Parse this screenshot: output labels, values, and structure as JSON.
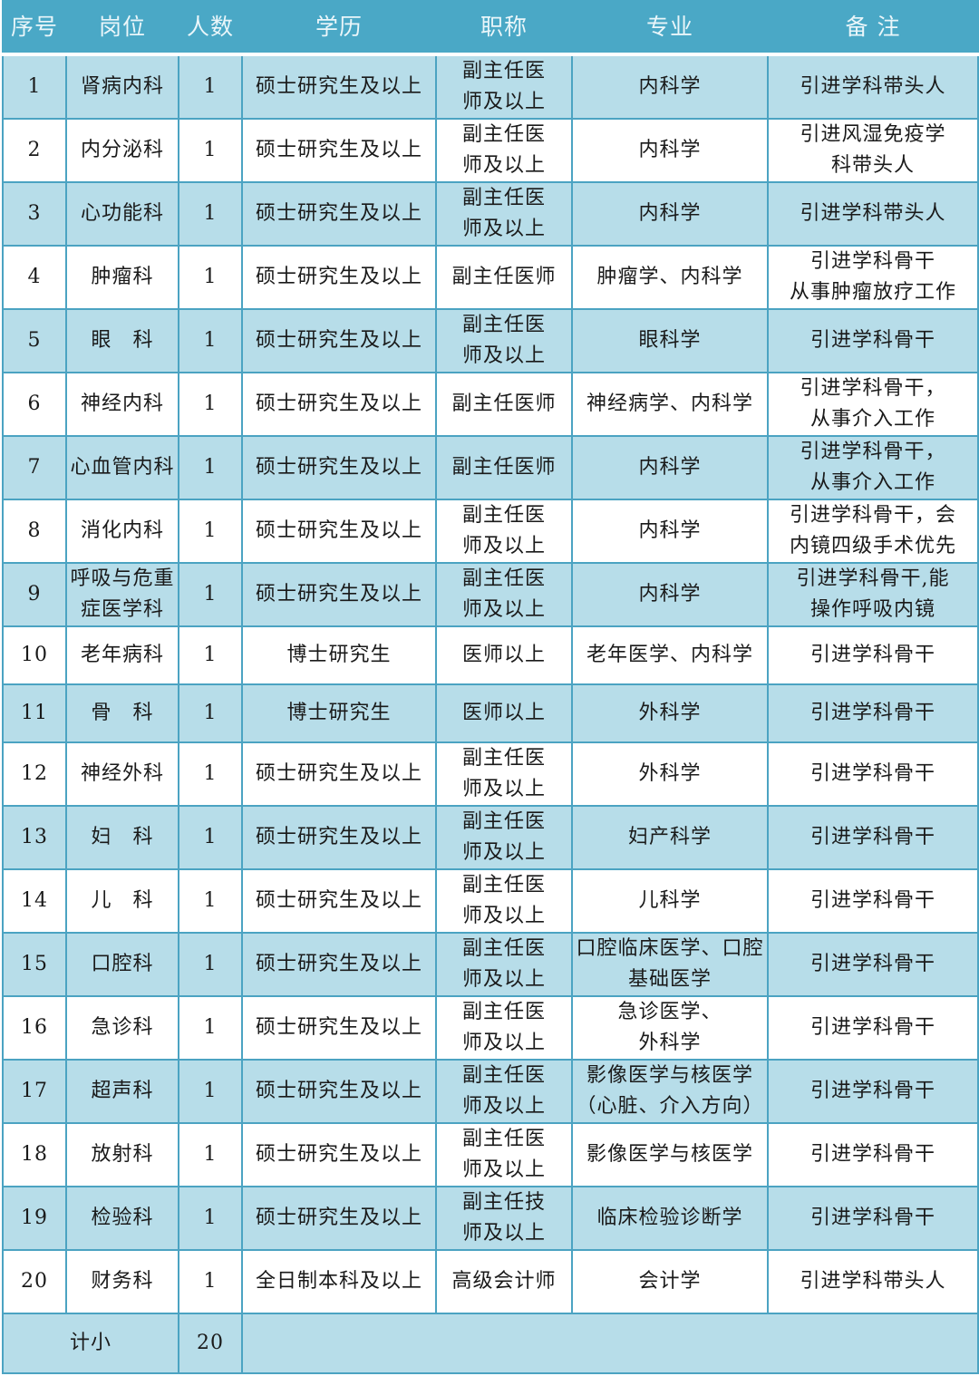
{
  "headers": [
    "序号",
    "岗位",
    "人数",
    "学历",
    "职称",
    "专业",
    "备  注"
  ],
  "rows": [
    [
      "1",
      "肾病内科",
      "1",
      "硕士研究生及以上",
      "副主任医\n师及以上",
      "内科学",
      "引进学科带头人"
    ],
    [
      "2",
      "内分泌科",
      "1",
      "硕士研究生及以上",
      "副主任医\n师及以上",
      "内科学",
      "引进风湿免疫学\n科带头人"
    ],
    [
      "3",
      "心功能科",
      "1",
      "硕士研究生及以上",
      "副主任医\n师及以上",
      "内科学",
      "引进学科带头人"
    ],
    [
      "4",
      "肿瘤科",
      "1",
      "硕士研究生及以上",
      "副主任医师",
      "肿瘤学、内科学",
      "引进学科骨干\n从事肿瘤放疗工作"
    ],
    [
      "5",
      "眼　科",
      "1",
      "硕士研究生及以上",
      "副主任医\n师及以上",
      "眼科学",
      "引进学科骨干"
    ],
    [
      "6",
      "神经内科",
      "1",
      "硕士研究生及以上",
      "副主任医师",
      "神经病学、内科学",
      "引进学科骨干，\n从事介入工作"
    ],
    [
      "7",
      "心血管内科",
      "1",
      "硕士研究生及以上",
      "副主任医师",
      "内科学",
      "引进学科骨干，\n从事介入工作"
    ],
    [
      "8",
      "消化内科",
      "1",
      "硕士研究生及以上",
      "副主任医\n师及以上",
      "内科学",
      "引进学科骨干，会\n内镜四级手术优先"
    ],
    [
      "9",
      "呼吸与危重\n症医学科",
      "1",
      "硕士研究生及以上",
      "副主任医\n师及以上",
      "内科学",
      "引进学科骨干,能\n操作呼吸内镜"
    ],
    [
      "10",
      "老年病科",
      "1",
      "博士研究生",
      "医师以上",
      "老年医学、内科学",
      "引进学科骨干"
    ],
    [
      "11",
      "骨　科",
      "1",
      "博士研究生",
      "医师以上",
      "外科学",
      "引进学科骨干"
    ],
    [
      "12",
      "神经外科",
      "1",
      "硕士研究生及以上",
      "副主任医\n师及以上",
      "外科学",
      "引进学科骨干"
    ],
    [
      "13",
      "妇　科",
      "1",
      "硕士研究生及以上",
      "副主任医\n师及以上",
      "妇产科学",
      "引进学科骨干"
    ],
    [
      "14",
      "儿　科",
      "1",
      "硕士研究生及以上",
      "副主任医\n师及以上",
      "儿科学",
      "引进学科骨干"
    ],
    [
      "15",
      "口腔科",
      "1",
      "硕士研究生及以上",
      "副主任医\n师及以上",
      "口腔临床医学、口腔\n基础医学",
      "引进学科骨干"
    ],
    [
      "16",
      "急诊科",
      "1",
      "硕士研究生及以上",
      "副主任医\n师及以上",
      "急诊医学、\n外科学",
      "引进学科骨干"
    ],
    [
      "17",
      "超声科",
      "1",
      "硕士研究生及以上",
      "副主任医\n师及以上",
      "影像医学与核医学\n（心脏、介入方向）",
      "引进学科骨干"
    ],
    [
      "18",
      "放射科",
      "1",
      "硕士研究生及以上",
      "副主任医\n师及以上",
      "影像医学与核医学",
      "引进学科骨干"
    ],
    [
      "19",
      "检验科",
      "1",
      "硕士研究生及以上",
      "副主任技\n师及以上",
      "临床检验诊断学",
      "引进学科骨干"
    ],
    [
      "20",
      "财务科",
      "1",
      "全日制本科及以上",
      "高级会计师",
      "会计学",
      "引进学科带头人"
    ]
  ],
  "total": {
    "label": "计小",
    "count": "20"
  },
  "colors": {
    "header": "#4aa8c6",
    "band": "#b7dde9",
    "border": "#4ba3c2"
  }
}
